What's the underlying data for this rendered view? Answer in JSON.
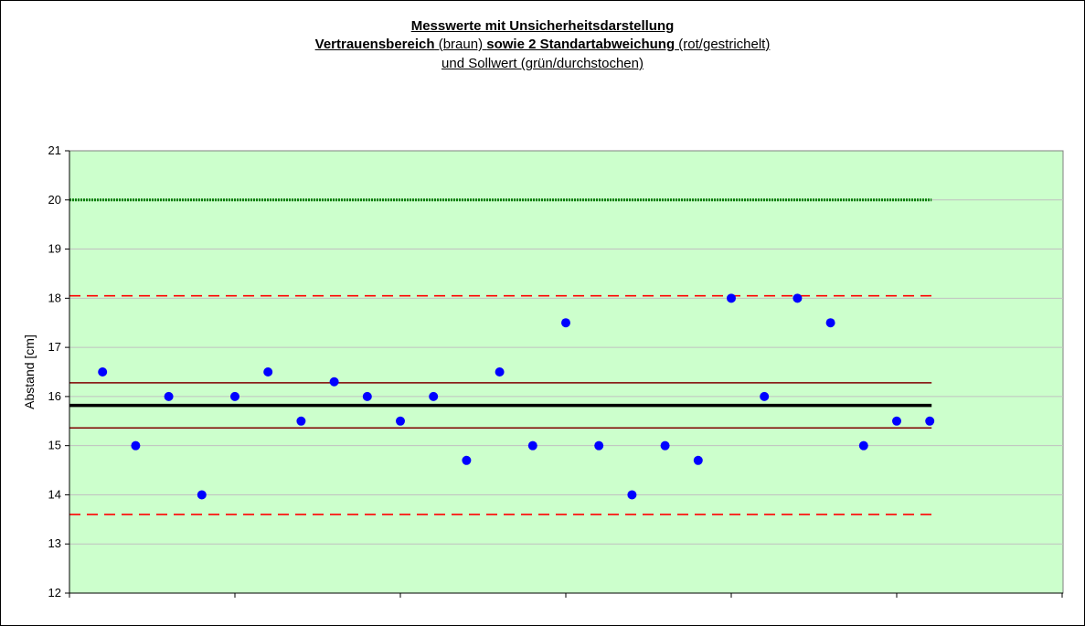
{
  "chart_data": {
    "type": "scatter",
    "title": {
      "line1": "Messwerte mit Unsicherheitsdarstellung",
      "line2_bold1": "Vertrauensbereich",
      "line2_normal1": " (braun) ",
      "line2_bold2": "sowie 2 Standartabweichung",
      "line2_normal2": " (rot/gestrichelt)",
      "line3": "und Sollwert (grün/durchstochen)"
    },
    "xlabel": "",
    "ylabel": "Abstand  [cm]",
    "ylim": [
      12,
      21
    ],
    "yticks": [
      "12",
      "13",
      "14",
      "15",
      "16",
      "17",
      "18",
      "19",
      "20",
      "21"
    ],
    "xlim": [
      0,
      30
    ],
    "grid": true,
    "series": [
      {
        "color": "#0000ff",
        "x": [
          1,
          2,
          3,
          4,
          5,
          6,
          7,
          8,
          9,
          10,
          11,
          12,
          13,
          14,
          15,
          16,
          17,
          18,
          19,
          20,
          21,
          22,
          23,
          24,
          25,
          26
        ],
        "y": [
          16.5,
          15,
          16,
          14,
          16,
          16.5,
          15.5,
          16.3,
          16,
          15.5,
          16,
          14.7,
          16.5,
          15,
          17.5,
          15,
          14,
          15,
          14.7,
          18,
          16,
          18,
          17.5,
          15,
          15.5,
          15.5
        ]
      }
    ],
    "reference_lines": [
      {
        "y": 20.0,
        "color": "#008000",
        "style": "dotted"
      },
      {
        "y": 18.05,
        "color": "#ff0000",
        "style": "dashed"
      },
      {
        "y": 16.28,
        "color": "#800000",
        "style": "solid"
      },
      {
        "y": 15.82,
        "color": "#000000",
        "style": "solid-bold"
      },
      {
        "y": 15.36,
        "color": "#800000",
        "style": "solid"
      },
      {
        "y": 13.6,
        "color": "#ff0000",
        "style": "dashed"
      }
    ],
    "colors": {
      "plot_background": "#ccffcc",
      "markers": "#0000ff"
    }
  }
}
